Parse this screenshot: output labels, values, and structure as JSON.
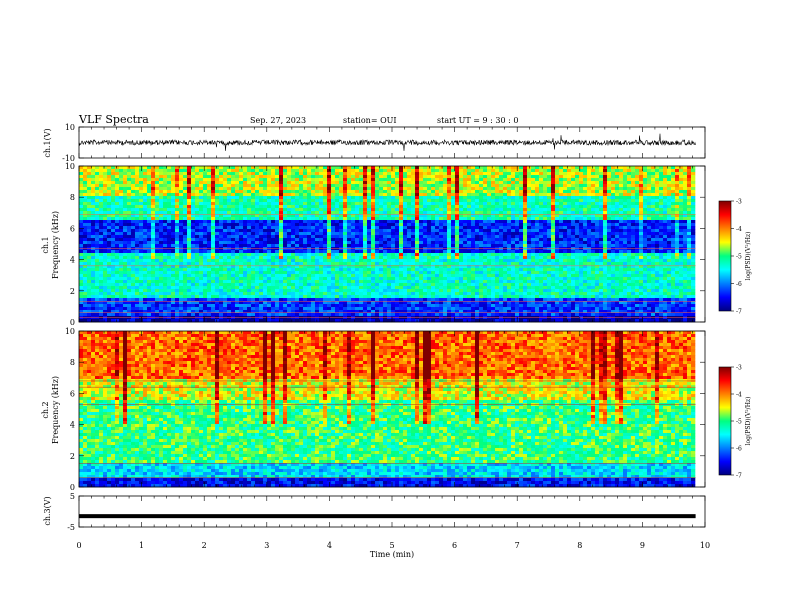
{
  "header": {
    "title": "VLF Spectra",
    "date": "Sep. 27, 2023",
    "station": "station= OUI",
    "start_ut": "start  UT =   9 : 30 : 0"
  },
  "chart_data": [
    {
      "type": "line",
      "name": "ch1-waveform",
      "ylabel": "ch.1(V)",
      "ylim": [
        -10,
        10
      ],
      "yticks": [
        "10",
        "-10"
      ],
      "xlim": [
        0,
        10
      ],
      "trace_level_v": 0,
      "trace_end_min": 9.85
    },
    {
      "type": "heatmap",
      "name": "ch1-spectrogram",
      "ylabel": "ch.1\nFrequency  (kHz)",
      "ylim": [
        0,
        10
      ],
      "yticks": [
        "0",
        "2",
        "4",
        "6",
        "8",
        "10"
      ],
      "xlim": [
        0,
        10
      ],
      "data_end_min": 9.85,
      "colorbar": {
        "label": "log(PSD)(V²/Hz)",
        "range": [
          -7,
          -3
        ],
        "ticks": [
          "-3",
          "-4",
          "-5",
          "-6",
          "-7"
        ]
      },
      "bands_khz": [
        {
          "range": [
            8,
            10
          ],
          "level": -4.6
        },
        {
          "range": [
            6.5,
            8
          ],
          "level": -5.2
        },
        {
          "range": [
            4.5,
            6.5
          ],
          "level": -6.4
        },
        {
          "range": [
            1.5,
            4.5
          ],
          "level": -5.3
        },
        {
          "range": [
            0.4,
            1.5
          ],
          "level": -6.3
        },
        {
          "range": [
            0,
            0.4
          ],
          "level": -6.8
        }
      ]
    },
    {
      "type": "heatmap",
      "name": "ch2-spectrogram",
      "ylabel": "ch.2\nFrequency  (kHz)",
      "ylim": [
        0,
        10
      ],
      "yticks": [
        "0",
        "2",
        "4",
        "6",
        "8",
        "10"
      ],
      "xlim": [
        0,
        10
      ],
      "data_end_min": 9.85,
      "colorbar": {
        "label": "log(PSD)(V²/Hz)",
        "range": [
          -7,
          -3
        ],
        "ticks": [
          "-3",
          "-4",
          "-5",
          "-6",
          "-7"
        ]
      },
      "bands_khz": [
        {
          "range": [
            7,
            10
          ],
          "level": -3.9
        },
        {
          "range": [
            5.5,
            7
          ],
          "level": -4.5
        },
        {
          "range": [
            1.5,
            5.5
          ],
          "level": -5.0
        },
        {
          "range": [
            0.5,
            1.5
          ],
          "level": -5.6
        },
        {
          "range": [
            0,
            0.5
          ],
          "level": -6.5
        }
      ]
    },
    {
      "type": "line",
      "name": "ch3-waveform",
      "ylabel": "ch.3(V)",
      "ylim": [
        -5,
        5
      ],
      "yticks": [
        "5",
        "-5"
      ],
      "xlim": [
        0,
        10
      ],
      "trace_level_v": -1.5,
      "trace_end_min": 9.85
    }
  ],
  "xaxis": {
    "label": "Time  (min)",
    "ticks": [
      "0",
      "1",
      "2",
      "3",
      "4",
      "5",
      "6",
      "7",
      "8",
      "9",
      "10"
    ]
  }
}
